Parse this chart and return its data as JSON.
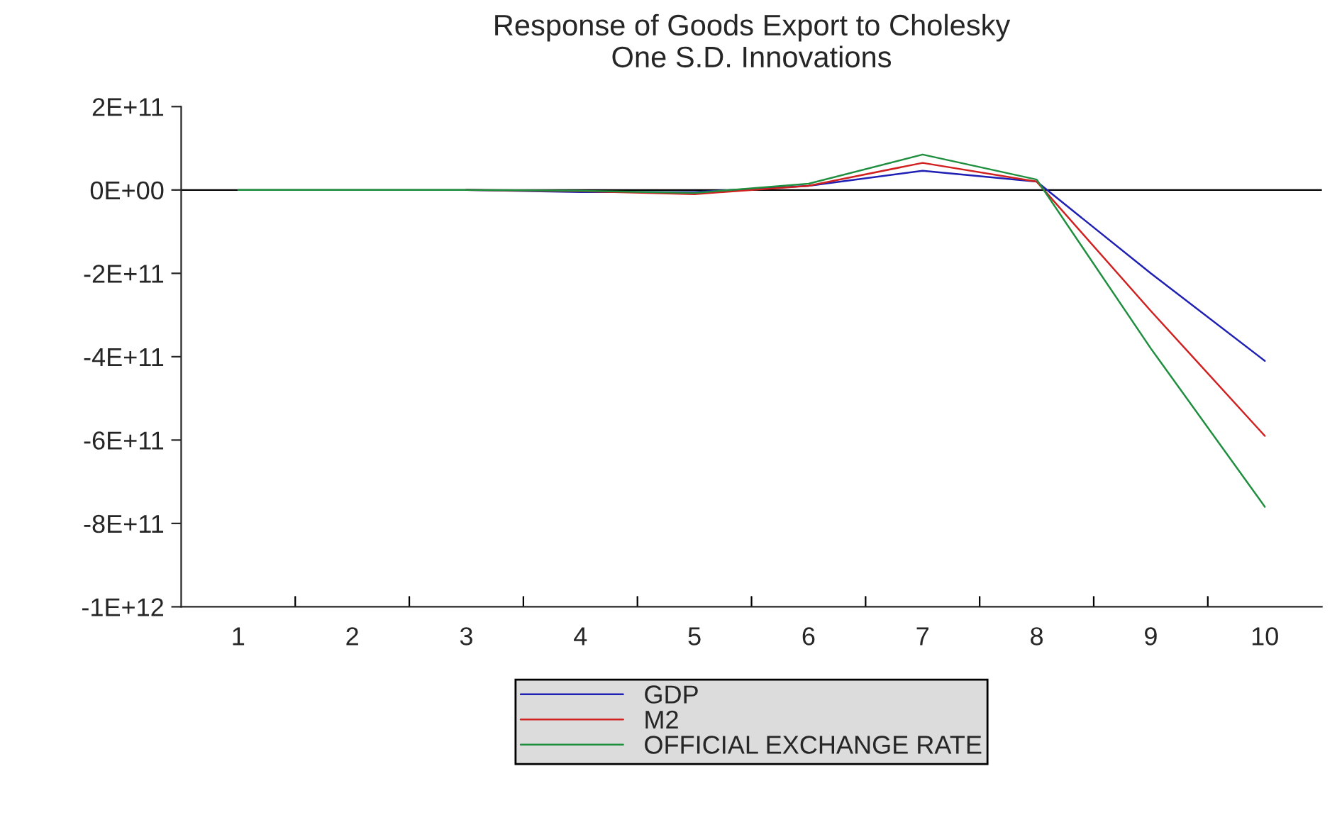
{
  "chart_data": {
    "type": "line",
    "title": "Response of Goods Export to Cholesky\nOne S.D. Innovations",
    "categories": [
      "1",
      "2",
      "3",
      "4",
      "5",
      "6",
      "7",
      "8",
      "9",
      "10"
    ],
    "series": [
      {
        "name": "GDP",
        "color": "#1f1fb4",
        "values": [
          null,
          null,
          0,
          -5000000000.0,
          -5000000000.0,
          10000000000.0,
          46000000000.0,
          20000000000.0,
          -200000000000.0,
          -410000000000.0
        ]
      },
      {
        "name": "M2",
        "color": "#d02020",
        "values": [
          null,
          null,
          0,
          -3000000000.0,
          -10000000000.0,
          10000000000.0,
          65000000000.0,
          20000000000.0,
          -290000000000.0,
          -590000000000.0
        ]
      },
      {
        "name": "OFFICIAL EXCHANGE RATE",
        "color": "#1f8f3f",
        "values": [
          0,
          0,
          0,
          -2000000000.0,
          -7000000000.0,
          15000000000.0,
          85000000000.0,
          25000000000.0,
          -380000000000.0,
          -760000000000.0
        ]
      }
    ],
    "ylim": [
      -1000000000000.0,
      200000000000.0
    ],
    "yticks": [
      {
        "value": 200000000000.0,
        "label": "2E+11"
      },
      {
        "value": 0,
        "label": "0E+00"
      },
      {
        "value": -200000000000.0,
        "label": "-2E+11"
      },
      {
        "value": -400000000000.0,
        "label": "-4E+11"
      },
      {
        "value": -600000000000.0,
        "label": "-6E+11"
      },
      {
        "value": -800000000000.0,
        "label": "-8E+11"
      },
      {
        "value": -1000000000000.0,
        "label": "-1E+12"
      }
    ],
    "ref_lines": [
      {
        "axis": "y",
        "value": 0,
        "color": "#000000"
      }
    ],
    "legend": "bottom",
    "grid": false
  }
}
